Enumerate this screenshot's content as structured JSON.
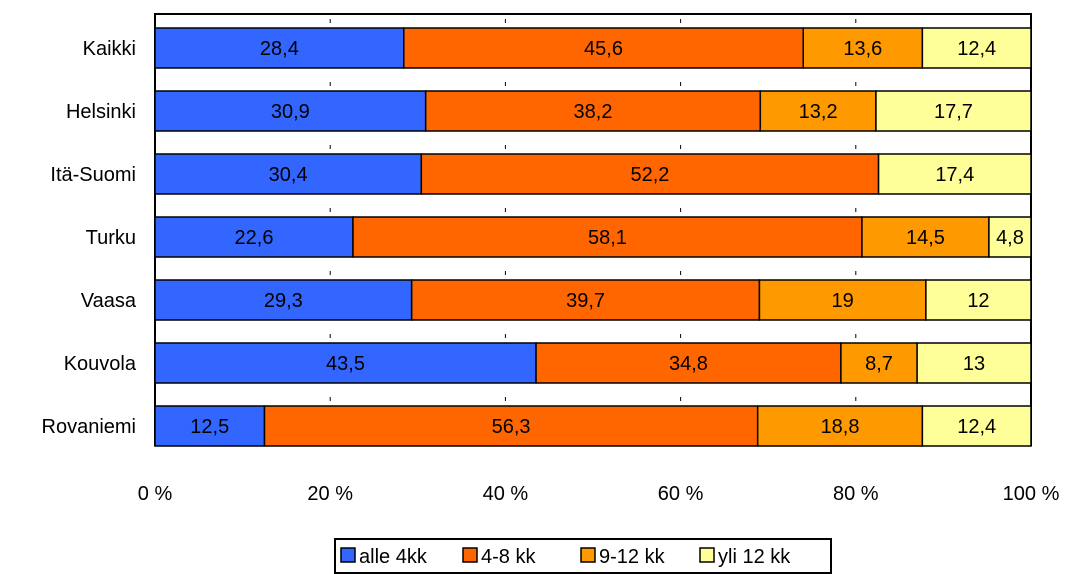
{
  "chart_data": {
    "type": "bar",
    "orientation": "horizontal",
    "stacked": "percent",
    "title": "",
    "xlabel": "",
    "ylabel": "",
    "xlim": [
      0,
      100
    ],
    "x_ticks": [
      "0 %",
      "20 %",
      "40 %",
      "60 %",
      "80 %",
      "100 %"
    ],
    "categories": [
      "Kaikki",
      "Helsinki",
      "Itä-Suomi",
      "Turku",
      "Vaasa",
      "Kouvola",
      "Rovaniemi"
    ],
    "series": [
      {
        "name": "alle 4kk",
        "color": "#3366ff",
        "values": [
          28.4,
          30.9,
          30.4,
          22.6,
          29.3,
          43.5,
          12.5
        ],
        "labels": [
          "28,4",
          "30,9",
          "30,4",
          "22,6",
          "29,3",
          "43,5",
          "12,5"
        ]
      },
      {
        "name": "4-8 kk",
        "color": "#ff6600",
        "values": [
          45.6,
          38.2,
          52.2,
          58.1,
          39.7,
          34.8,
          56.3
        ],
        "labels": [
          "45,6",
          "38,2",
          "52,2",
          "58,1",
          "39,7",
          "34,8",
          "56,3"
        ]
      },
      {
        "name": "9-12 kk",
        "color": "#ff9900",
        "values": [
          13.6,
          13.2,
          0,
          14.5,
          19,
          8.7,
          18.8
        ],
        "labels": [
          "13,6",
          "13,2",
          "",
          "14,5",
          "19",
          "8,7",
          "18,8"
        ]
      },
      {
        "name": "yli 12 kk",
        "color": "#ffff99",
        "values": [
          12.4,
          17.7,
          17.4,
          4.8,
          12,
          13,
          12.4
        ],
        "labels": [
          "12,4",
          "17,7",
          "17,4",
          "4,8",
          "12",
          "13",
          "12,4"
        ]
      }
    ],
    "grid": false,
    "legend": "bottom"
  }
}
